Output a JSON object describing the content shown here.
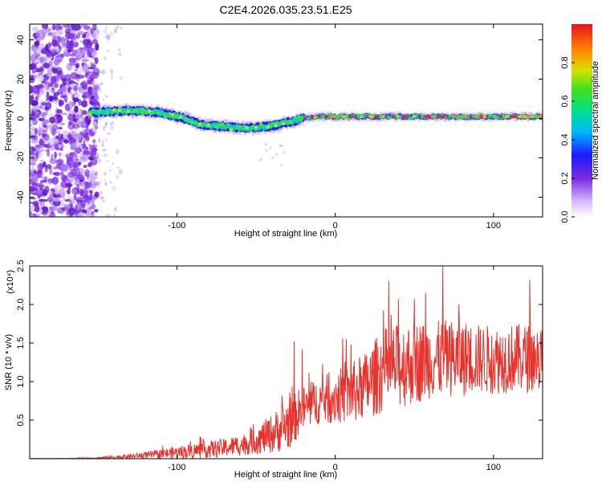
{
  "window": {
    "title": "C2E4.2026.035.23.51.E25"
  },
  "colors": {
    "snr_line": "#e8322c",
    "noise": "#7a2be0",
    "band_core": "#e8232a",
    "axis": "#000000"
  },
  "chart_data": [
    {
      "type": "heatmap",
      "title": "C2E4.2026.035.23.51.E25",
      "xlabel": "Height of straight line (km)",
      "ylabel": "Frequency (Hz)",
      "xlim": [
        -193,
        131
      ],
      "ylim": [
        -50,
        48
      ],
      "xticks": [
        -100,
        0,
        100
      ],
      "xtick_labels": [
        "-100",
        "0",
        "100"
      ],
      "yticks": [
        -40,
        -20,
        0,
        20,
        40
      ],
      "ytick_labels": [
        "-40",
        "-20",
        "0",
        "20",
        "40"
      ],
      "noise_region_x": [
        -193,
        -150
      ],
      "sparse_noise_x": [
        -150,
        -135
      ],
      "band_center_hz": [
        [
          -155,
          3
        ],
        [
          -130,
          4
        ],
        [
          -110,
          3
        ],
        [
          -95,
          0
        ],
        [
          -85,
          -3
        ],
        [
          -70,
          -4
        ],
        [
          -55,
          -5
        ],
        [
          -42,
          -4
        ],
        [
          -30,
          -2
        ],
        [
          -20,
          0
        ],
        [
          -10,
          1
        ],
        [
          0,
          1
        ],
        [
          50,
          1
        ],
        [
          100,
          1
        ],
        [
          131,
          1
        ]
      ],
      "colorbar": {
        "label": "Normalized spectral amplitude",
        "range": [
          0.0,
          1.0
        ],
        "ticks": [
          "0.0",
          "0.2",
          "0.4",
          "0.6",
          "0.8"
        ],
        "tick_values": [
          0.0,
          0.2,
          0.4,
          0.6,
          0.8
        ]
      }
    },
    {
      "type": "line",
      "title": "",
      "xlabel": "Height of straight line (km)",
      "ylabel": "SNR (10 * v/v)",
      "scale_label": "(x10⁴)",
      "xlim": [
        -193,
        131
      ],
      "ylim": [
        0,
        2.5
      ],
      "xticks": [
        -100,
        0,
        100
      ],
      "xtick_labels": [
        "-100",
        "0",
        "100"
      ],
      "yticks": [
        0.5,
        1.0,
        1.5,
        2.0,
        2.5
      ],
      "ytick_labels": [
        "0.5",
        "1.0",
        "1.5",
        "2.0",
        "2.5"
      ],
      "envelope": {
        "x": [
          -193,
          -170,
          -150,
          -130,
          -110,
          -90,
          -70,
          -55,
          -40,
          -30,
          -20,
          -10,
          0,
          10,
          20,
          25,
          30,
          40,
          50,
          60,
          70,
          80,
          90,
          100,
          110,
          120,
          131
        ],
        "base": [
          0.0,
          0.0,
          0.01,
          0.03,
          0.06,
          0.1,
          0.14,
          0.2,
          0.32,
          0.45,
          0.65,
          0.75,
          0.8,
          0.85,
          0.95,
          1.05,
          1.15,
          1.2,
          1.25,
          1.28,
          1.3,
          1.3,
          1.3,
          1.28,
          1.3,
          1.3,
          1.3
        ],
        "amp": [
          0.0,
          0.005,
          0.01,
          0.03,
          0.06,
          0.1,
          0.12,
          0.15,
          0.25,
          0.35,
          0.3,
          0.3,
          0.35,
          0.4,
          0.45,
          0.5,
          0.55,
          0.55,
          0.55,
          0.5,
          0.5,
          0.5,
          0.45,
          0.45,
          0.45,
          0.45,
          0.45
        ]
      },
      "peaks": [
        {
          "x": -26,
          "y": 1.52
        },
        {
          "x": -21,
          "y": 1.42
        },
        {
          "x": 7,
          "y": 1.55
        },
        {
          "x": 10,
          "y": 1.48
        },
        {
          "x": 40,
          "y": 2.07
        },
        {
          "x": 50,
          "y": 2.07
        },
        {
          "x": 57,
          "y": 2.15
        },
        {
          "x": 68,
          "y": 2.5
        },
        {
          "x": 78,
          "y": 2.0
        },
        {
          "x": 123,
          "y": 2.32
        }
      ]
    }
  ]
}
